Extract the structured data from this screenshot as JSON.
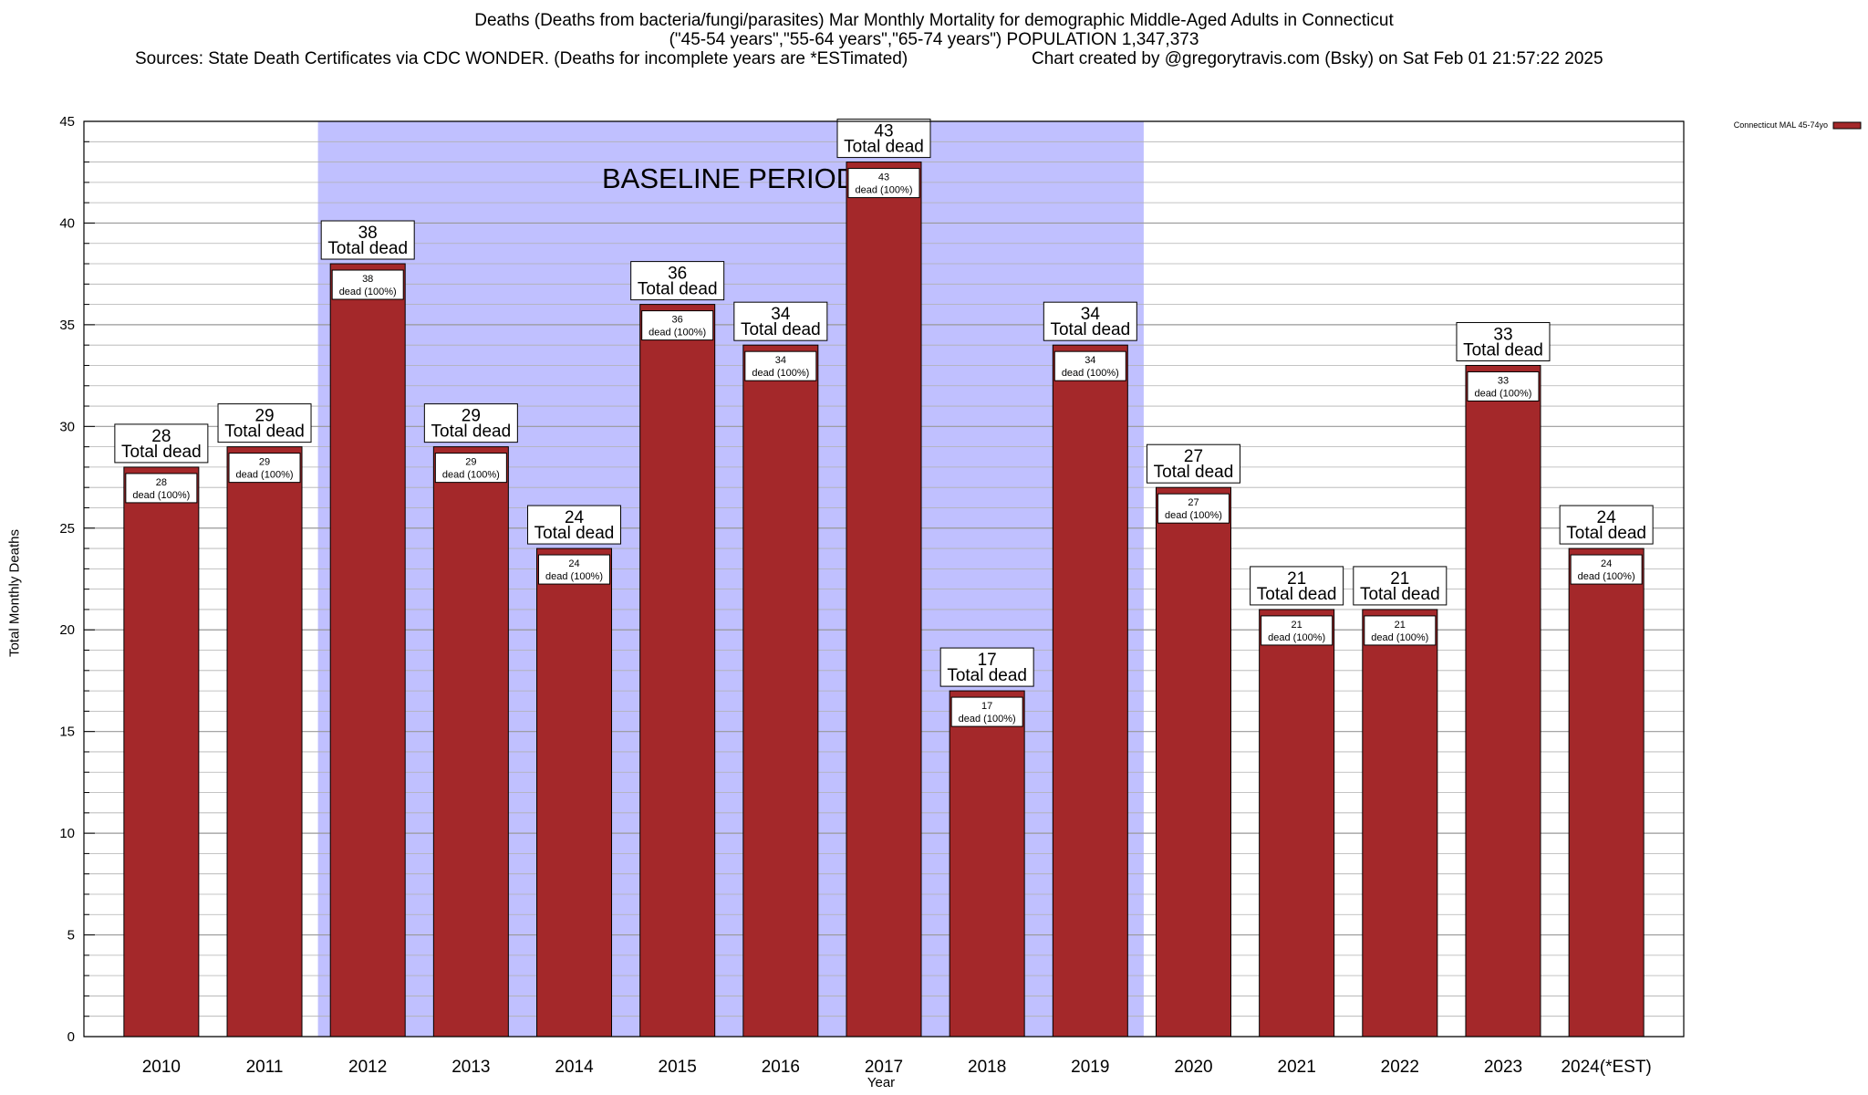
{
  "title": {
    "line1": "Deaths (Deaths from bacteria/fungi/parasites) Mar Monthly Mortality for demographic Middle-Aged Adults in Connecticut",
    "line2": "(\"45-54 years\",\"55-64 years\",\"65-74 years\") POPULATION 1,347,373",
    "line3_left": "Sources: State Death Certificates via CDC WONDER. (Deaths for incomplete years are *ESTimated)",
    "line3_right": "Chart created by @gregorytravis.com (Bsky) on Sat Feb 01 21:57:22 2025"
  },
  "colors": {
    "bar": "#a4282a",
    "baseline_band": "#c0c0ff",
    "grid": "#b0b0b0"
  },
  "chart_data": {
    "type": "bar",
    "categories": [
      "2010",
      "2011",
      "2012",
      "2013",
      "2014",
      "2015",
      "2016",
      "2017",
      "2018",
      "2019",
      "2020",
      "2021",
      "2022",
      "2023",
      "2024(*EST)"
    ],
    "series": [
      {
        "name": "Connecticut MAL 45-74yo",
        "values": [
          28,
          29,
          38,
          29,
          24,
          36,
          34,
          43,
          17,
          34,
          27,
          21,
          21,
          33,
          24
        ]
      }
    ],
    "xlabel": "Year",
    "ylabel": "Total Monthly Deaths",
    "ylim": [
      0,
      45
    ],
    "yticks": [
      0,
      5,
      10,
      15,
      20,
      25,
      30,
      35,
      40,
      45
    ],
    "grid": true,
    "legend_position": "top-right",
    "baseline_band": {
      "from": "2012",
      "to": "2019",
      "label": "BASELINE PERIOD"
    },
    "box_label_suffix": "Total dead",
    "inner_label_suffix": "dead (100%)"
  }
}
